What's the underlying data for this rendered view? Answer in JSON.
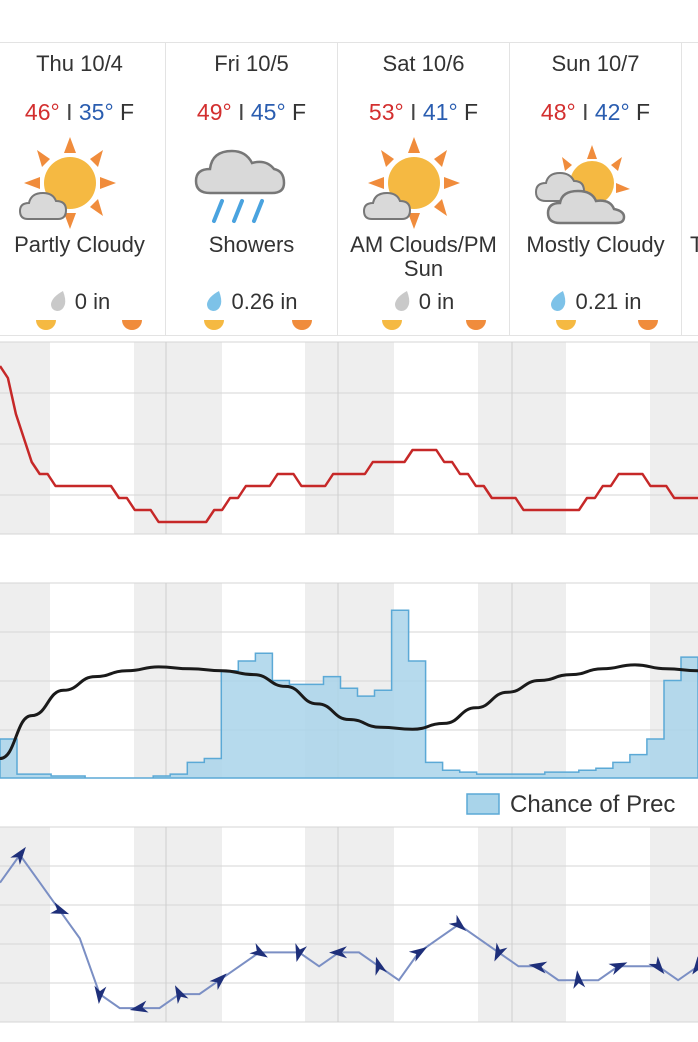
{
  "days": [
    {
      "date": "Thu 10/4",
      "hi": "46°",
      "lo": "35°",
      "unit": "F",
      "condition": "Partly Cloudy",
      "precip": "0 in",
      "icon": "partly-cloudy-icon",
      "drop": "dry"
    },
    {
      "date": "Fri 10/5",
      "hi": "49°",
      "lo": "45°",
      "unit": "F",
      "condition": "Showers",
      "precip": "0.26 in",
      "icon": "showers-icon",
      "drop": "wet"
    },
    {
      "date": "Sat 10/6",
      "hi": "53°",
      "lo": "41°",
      "unit": "F",
      "condition": "AM Clouds/PM Sun",
      "precip": "0 in",
      "icon": "partly-cloudy-icon",
      "drop": "dry"
    },
    {
      "date": "Sun 10/7",
      "hi": "48°",
      "lo": "42°",
      "unit": "F",
      "condition": "Mostly Cloudy",
      "precip": "0.21 in",
      "icon": "mostly-cloudy-icon",
      "drop": "wet"
    },
    {
      "date": "",
      "hi": "",
      "lo": "",
      "unit": "",
      "condition": "T",
      "precip": "",
      "icon": "",
      "drop": ""
    }
  ],
  "colors": {
    "high": "#d32f2f",
    "low": "#2a5db0",
    "temperature_line": "#c62828",
    "precip_fill": "#a9d4ea",
    "precip_line": "#5ba9d6",
    "humidity_line": "#1a1a1a",
    "wind_line": "#7b8fc4",
    "wind_arrow": "#1e2f7a",
    "night_band": "#eeeeee",
    "sun": "#f5b942",
    "sun_rays": "#f08c3c",
    "cloud": "#d9d9d9",
    "rain": "#4aa3df"
  },
  "chart_data": [
    {
      "type": "line",
      "series": [
        {
          "values": [
            56,
            55,
            52,
            50,
            48,
            47,
            47,
            46,
            46,
            46,
            46,
            46,
            46,
            46,
            46,
            45,
            45,
            44,
            44,
            44,
            43,
            43,
            43,
            43,
            43,
            43,
            43,
            44,
            44,
            45,
            45,
            46,
            46,
            46,
            46,
            47,
            47,
            47,
            46,
            46,
            46,
            46,
            47,
            47,
            47,
            47,
            47,
            48,
            48,
            48,
            48,
            48,
            49,
            49,
            49,
            49,
            48,
            48,
            47,
            47,
            46,
            46,
            45,
            45,
            45,
            45,
            44,
            44,
            44,
            44,
            44,
            44,
            44,
            44,
            45,
            45,
            46,
            46,
            47,
            47,
            47,
            47,
            46,
            46,
            46,
            45,
            45,
            45,
            45
          ]
        }
      ],
      "ylim": [
        42,
        58
      ],
      "grid": true
    },
    {
      "type": "area",
      "series": [
        {
          "name": "Chance of Precip",
          "values": [
            20,
            2,
            2,
            1,
            1,
            0,
            0,
            0,
            0,
            1,
            2,
            8,
            10,
            55,
            60,
            64,
            50,
            48,
            48,
            52,
            46,
            42,
            45,
            86,
            60,
            8,
            4,
            3,
            2,
            2,
            2,
            2,
            3,
            3,
            4,
            5,
            8,
            12,
            20,
            50,
            62,
            62
          ]
        },
        {
          "values": [
            10,
            32,
            45,
            52,
            55,
            57,
            56,
            55,
            53,
            47,
            38,
            30,
            26,
            25,
            28,
            36,
            44,
            50,
            53,
            56,
            58,
            56,
            55
          ]
        }
      ],
      "ylim": [
        0,
        100
      ],
      "grid": true
    },
    {
      "type": "line",
      "series": [
        {
          "values": [
            10,
            12,
            10,
            8,
            6,
            2,
            1,
            1,
            1,
            2,
            2,
            3,
            4,
            5,
            5,
            5,
            4,
            5,
            5,
            4,
            3,
            5,
            6,
            7,
            6,
            5,
            4,
            4,
            3,
            3,
            3,
            4,
            4,
            4,
            3,
            4
          ]
        }
      ],
      "ylim": [
        0,
        14
      ],
      "grid": true
    }
  ],
  "legend": {
    "label": "Chance of Prec"
  }
}
